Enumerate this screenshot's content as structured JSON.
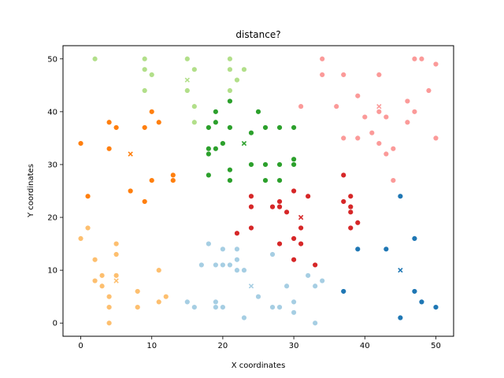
{
  "chart_data": {
    "type": "scatter",
    "title": "distance?",
    "xlabel": "X coordinates",
    "ylabel": "Y coordinates",
    "xlim": [
      -2.5,
      52.5
    ],
    "ylim": [
      -2.5,
      52.5
    ],
    "xticks": [
      "0",
      "10",
      "20",
      "30",
      "40",
      "50"
    ],
    "yticks": [
      "0",
      "10",
      "20",
      "30",
      "40",
      "50"
    ],
    "grid": false,
    "legend": "none",
    "series": [
      {
        "color": "#1f77b4",
        "points": [
          [
            45,
            24
          ],
          [
            47,
            16
          ],
          [
            39,
            14
          ],
          [
            43,
            14
          ],
          [
            37,
            6
          ],
          [
            47,
            6
          ],
          [
            48,
            4
          ],
          [
            50,
            3
          ],
          [
            45,
            1
          ]
        ],
        "center": [
          45,
          10
        ]
      },
      {
        "color": "#a6cee3",
        "points": [
          [
            18,
            15
          ],
          [
            17,
            11
          ],
          [
            19,
            11
          ],
          [
            20,
            14
          ],
          [
            22,
            14
          ],
          [
            20,
            11
          ],
          [
            21,
            11
          ],
          [
            22,
            12
          ],
          [
            22,
            10
          ],
          [
            23,
            10
          ],
          [
            15,
            4
          ],
          [
            16,
            3
          ],
          [
            19,
            4
          ],
          [
            19,
            3
          ],
          [
            20,
            3
          ],
          [
            23,
            1
          ],
          [
            25,
            5
          ],
          [
            27,
            13
          ],
          [
            27,
            3
          ],
          [
            28,
            3
          ],
          [
            29,
            7
          ],
          [
            30,
            4
          ],
          [
            30,
            2
          ],
          [
            32,
            9
          ],
          [
            33,
            7
          ],
          [
            34,
            8
          ],
          [
            33,
            0
          ]
        ],
        "center": [
          24,
          7
        ]
      },
      {
        "color": "#ff7f0e",
        "points": [
          [
            0,
            34
          ],
          [
            4,
            38
          ],
          [
            5,
            37
          ],
          [
            4,
            33
          ],
          [
            10,
            40
          ],
          [
            9,
            37
          ],
          [
            11,
            38
          ],
          [
            13,
            28
          ],
          [
            13,
            27
          ],
          [
            7,
            25
          ],
          [
            10,
            27
          ],
          [
            9,
            23
          ],
          [
            1,
            24
          ]
        ],
        "center": [
          7,
          32
        ]
      },
      {
        "color": "#fdbf6f",
        "points": [
          [
            0,
            16
          ],
          [
            1,
            18
          ],
          [
            2,
            12
          ],
          [
            5,
            15
          ],
          [
            5,
            13
          ],
          [
            2,
            8
          ],
          [
            3,
            9
          ],
          [
            3,
            7
          ],
          [
            5,
            9
          ],
          [
            4,
            5
          ],
          [
            4,
            3
          ],
          [
            4,
            0
          ],
          [
            8,
            6
          ],
          [
            8,
            3
          ],
          [
            11,
            10
          ],
          [
            11,
            4
          ],
          [
            12,
            5
          ]
        ],
        "center": [
          5,
          8
        ]
      },
      {
        "color": "#2ca02c",
        "points": [
          [
            19,
            40
          ],
          [
            21,
            42
          ],
          [
            18,
            37
          ],
          [
            19,
            38
          ],
          [
            21,
            37
          ],
          [
            25,
            40
          ],
          [
            24,
            36
          ],
          [
            26,
            37
          ],
          [
            28,
            37
          ],
          [
            30,
            37
          ],
          [
            18,
            33
          ],
          [
            18,
            32
          ],
          [
            19,
            33
          ],
          [
            20,
            34
          ],
          [
            24,
            30
          ],
          [
            26,
            30
          ],
          [
            28,
            30
          ],
          [
            30,
            31
          ],
          [
            30,
            30
          ],
          [
            18,
            28
          ],
          [
            21,
            29
          ],
          [
            21,
            27
          ],
          [
            26,
            27
          ],
          [
            28,
            27
          ]
        ],
        "center": [
          23,
          34
        ]
      },
      {
        "color": "#b2df8a",
        "points": [
          [
            2,
            50
          ],
          [
            9,
            50
          ],
          [
            9,
            48
          ],
          [
            10,
            47
          ],
          [
            9,
            44
          ],
          [
            15,
            50
          ],
          [
            16,
            48
          ],
          [
            15,
            44
          ],
          [
            16,
            41
          ],
          [
            16,
            38
          ],
          [
            21,
            50
          ],
          [
            21,
            48
          ],
          [
            21,
            44
          ],
          [
            22,
            46
          ],
          [
            23,
            48
          ]
        ],
        "center": [
          15,
          46
        ]
      },
      {
        "color": "#d62728",
        "points": [
          [
            22,
            17
          ],
          [
            24,
            24
          ],
          [
            24,
            22
          ],
          [
            24,
            18
          ],
          [
            27,
            22
          ],
          [
            28,
            23
          ],
          [
            28,
            22
          ],
          [
            28,
            15
          ],
          [
            29,
            21
          ],
          [
            30,
            25
          ],
          [
            30,
            16
          ],
          [
            30,
            12
          ],
          [
            31,
            18
          ],
          [
            31,
            15
          ],
          [
            32,
            24
          ],
          [
            33,
            11
          ],
          [
            37,
            28
          ],
          [
            37,
            23
          ],
          [
            38,
            24
          ],
          [
            38,
            22
          ],
          [
            38,
            21
          ],
          [
            38,
            18
          ],
          [
            39,
            19
          ]
        ],
        "center": [
          31,
          20
        ]
      },
      {
        "color": "#fb9a99",
        "points": [
          [
            34,
            50
          ],
          [
            34,
            47
          ],
          [
            37,
            47
          ],
          [
            42,
            47
          ],
          [
            47,
            50
          ],
          [
            48,
            50
          ],
          [
            50,
            49
          ],
          [
            31,
            41
          ],
          [
            36,
            41
          ],
          [
            39,
            43
          ],
          [
            37,
            35
          ],
          [
            39,
            35
          ],
          [
            40,
            39
          ],
          [
            41,
            36
          ],
          [
            42,
            40
          ],
          [
            42,
            34
          ],
          [
            43,
            39
          ],
          [
            43,
            32
          ],
          [
            44,
            33
          ],
          [
            44,
            27
          ],
          [
            46,
            42
          ],
          [
            46,
            38
          ],
          [
            47,
            40
          ],
          [
            49,
            44
          ],
          [
            50,
            35
          ]
        ],
        "center": [
          42,
          41
        ]
      }
    ]
  }
}
